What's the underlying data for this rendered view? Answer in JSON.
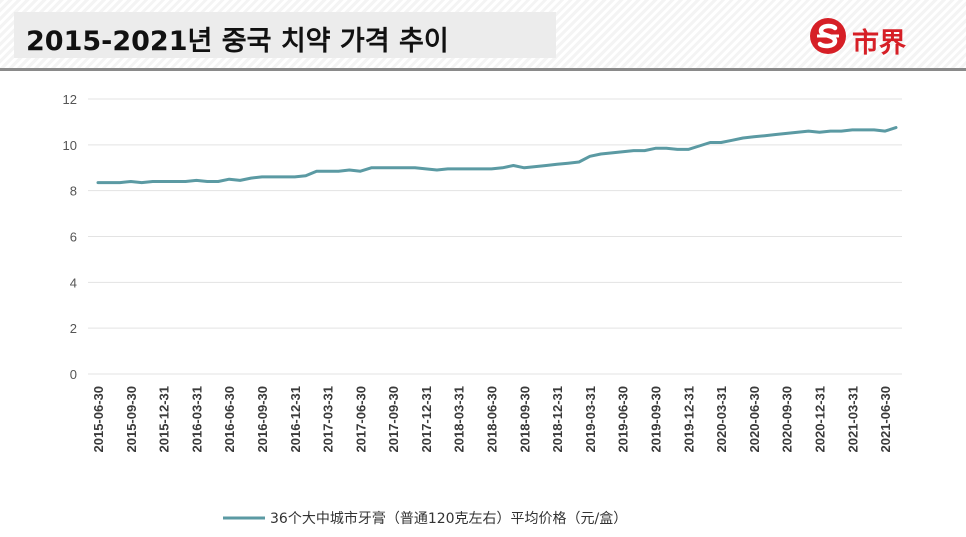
{
  "header": {
    "title": "2015-2021년  중국 치약 가격 추이",
    "brand_name": "市界",
    "brand_color": "#d61f26"
  },
  "chart_data": {
    "type": "line",
    "x": [
      "2015-06-30",
      "2015-07-31",
      "2015-08-31",
      "2015-09-30",
      "2015-10-31",
      "2015-11-30",
      "2015-12-31",
      "2016-01-31",
      "2016-02-29",
      "2016-03-31",
      "2016-04-30",
      "2016-05-31",
      "2016-06-30",
      "2016-07-31",
      "2016-08-31",
      "2016-09-30",
      "2016-10-31",
      "2016-11-30",
      "2016-12-31",
      "2017-01-31",
      "2017-02-28",
      "2017-03-31",
      "2017-04-30",
      "2017-05-31",
      "2017-06-30",
      "2017-07-31",
      "2017-08-31",
      "2017-09-30",
      "2017-10-31",
      "2017-11-30",
      "2017-12-31",
      "2018-01-31",
      "2018-02-28",
      "2018-03-31",
      "2018-04-30",
      "2018-05-31",
      "2018-06-30",
      "2018-07-31",
      "2018-08-31",
      "2018-09-30",
      "2018-10-31",
      "2018-11-30",
      "2018-12-31",
      "2019-01-31",
      "2019-02-28",
      "2019-03-31",
      "2019-04-30",
      "2019-05-31",
      "2019-06-30",
      "2019-07-31",
      "2019-08-31",
      "2019-09-30",
      "2019-10-31",
      "2019-11-30",
      "2019-12-31",
      "2020-01-31",
      "2020-02-29",
      "2020-03-31",
      "2020-04-30",
      "2020-05-31",
      "2020-06-30",
      "2020-07-31",
      "2020-08-31",
      "2020-09-30",
      "2020-10-31",
      "2020-11-30",
      "2020-12-31",
      "2021-01-31",
      "2021-02-28",
      "2021-03-31",
      "2021-04-30",
      "2021-05-31",
      "2021-06-30",
      "2021-07-31"
    ],
    "tick_labels": [
      "2015-06-30",
      "2015-09-30",
      "2015-12-31",
      "2016-03-31",
      "2016-06-30",
      "2016-09-30",
      "2016-12-31",
      "2017-03-31",
      "2017-06-30",
      "2017-09-30",
      "2017-12-31",
      "2018-03-31",
      "2018-06-30",
      "2018-09-30",
      "2018-12-31",
      "2019-03-31",
      "2019-06-30",
      "2019-09-30",
      "2019-12-31",
      "2020-03-31",
      "2020-06-30",
      "2020-09-30",
      "2020-12-31",
      "2021-03-31",
      "2021-06-30"
    ],
    "series": [
      {
        "name": "36个大中城市牙膏（普通120克左右）平均价格（元/盒）",
        "color": "#5b9aa3",
        "values": [
          8.35,
          8.35,
          8.35,
          8.4,
          8.35,
          8.4,
          8.4,
          8.4,
          8.4,
          8.45,
          8.4,
          8.4,
          8.5,
          8.45,
          8.55,
          8.6,
          8.6,
          8.6,
          8.6,
          8.65,
          8.85,
          8.85,
          8.85,
          8.9,
          8.85,
          9.0,
          9.0,
          9.0,
          9.0,
          9.0,
          8.95,
          8.9,
          8.95,
          8.95,
          8.95,
          8.95,
          8.95,
          9.0,
          9.1,
          9.0,
          9.05,
          9.1,
          9.15,
          9.2,
          9.25,
          9.5,
          9.6,
          9.65,
          9.7,
          9.75,
          9.75,
          9.85,
          9.85,
          9.8,
          9.8,
          9.95,
          10.1,
          10.1,
          10.2,
          10.3,
          10.35,
          10.4,
          10.45,
          10.5,
          10.55,
          10.6,
          10.55,
          10.6,
          10.6,
          10.65,
          10.65,
          10.65,
          10.6,
          10.75
        ]
      }
    ],
    "y_ticks": [
      0,
      2,
      4,
      6,
      8,
      10,
      12
    ],
    "ylim": [
      0,
      12
    ],
    "grid": true,
    "legend_position": "bottom"
  }
}
